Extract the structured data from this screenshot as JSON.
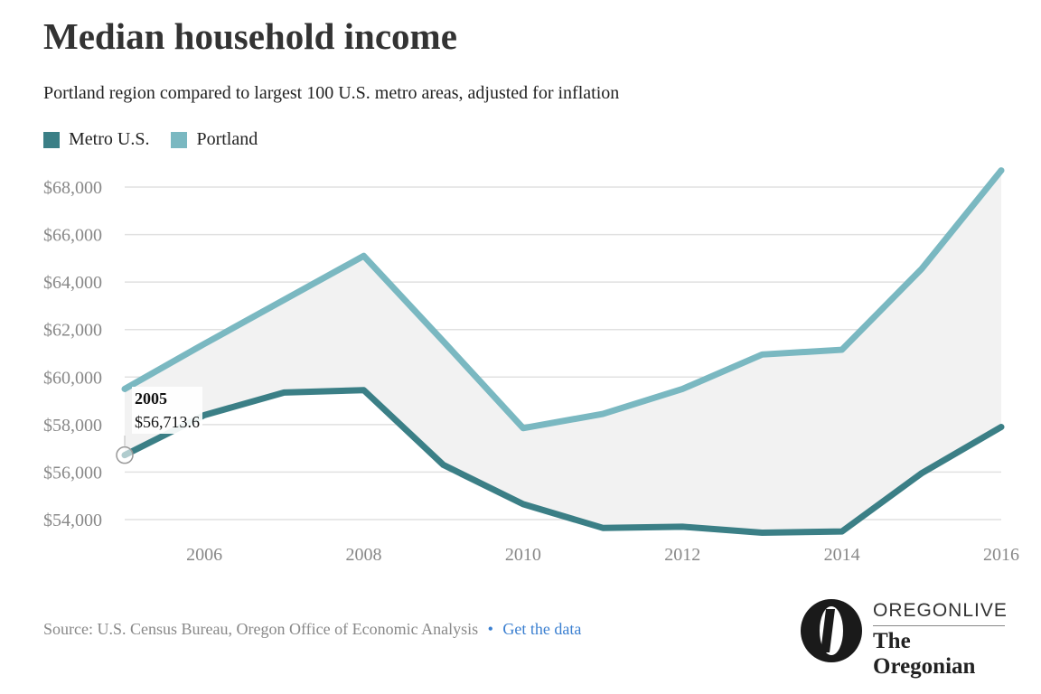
{
  "header": {
    "title": "Median household income",
    "subtitle": "Portland region compared to largest 100 U.S. metro areas, adjusted for inflation"
  },
  "legend": [
    {
      "label": "Metro U.S.",
      "color": "#3b7f86"
    },
    {
      "label": "Portland",
      "color": "#7ab8c1"
    }
  ],
  "tooltip": {
    "year": "2005",
    "value": "$56,713.6"
  },
  "footer": {
    "source": "Source: U.S. Census Bureau, Oregon Office of Economic Analysis",
    "separator": "•",
    "link": "Get the data"
  },
  "logo": {
    "top": "OREGONLIVE",
    "bottom": "The Oregonian",
    "mark": "O"
  },
  "chart_data": {
    "type": "line",
    "x": [
      2005,
      2006,
      2007,
      2008,
      2009,
      2010,
      2011,
      2012,
      2013,
      2014,
      2015,
      2016
    ],
    "series": [
      {
        "name": "Metro U.S.",
        "color": "#3b7f86",
        "values": [
          56713.6,
          58400,
          59350,
          59450,
          56300,
          54650,
          53650,
          53700,
          53450,
          53500,
          55950,
          57900
        ]
      },
      {
        "name": "Portland",
        "color": "#7ab8c1",
        "values": [
          59500,
          61400,
          63250,
          65100,
          61500,
          57850,
          58450,
          59500,
          60950,
          61150,
          64550,
          68700
        ]
      }
    ],
    "ylim": [
      53000,
      68700
    ],
    "yticks": [
      54000,
      56000,
      58000,
      60000,
      62000,
      64000,
      66000,
      68000
    ],
    "ytick_labels": [
      "$54,000",
      "$56,000",
      "$58,000",
      "$60,000",
      "$62,000",
      "$64,000",
      "$66,000",
      "$68,000"
    ],
    "xticks": [
      2006,
      2008,
      2010,
      2012,
      2014,
      2016
    ],
    "xtick_labels": [
      "2006",
      "2008",
      "2010",
      "2012",
      "2014",
      "2016"
    ],
    "grid": true,
    "gap_fill_color": "#f2f2f2",
    "highlight": {
      "x": 2005,
      "series": "Metro U.S."
    }
  }
}
